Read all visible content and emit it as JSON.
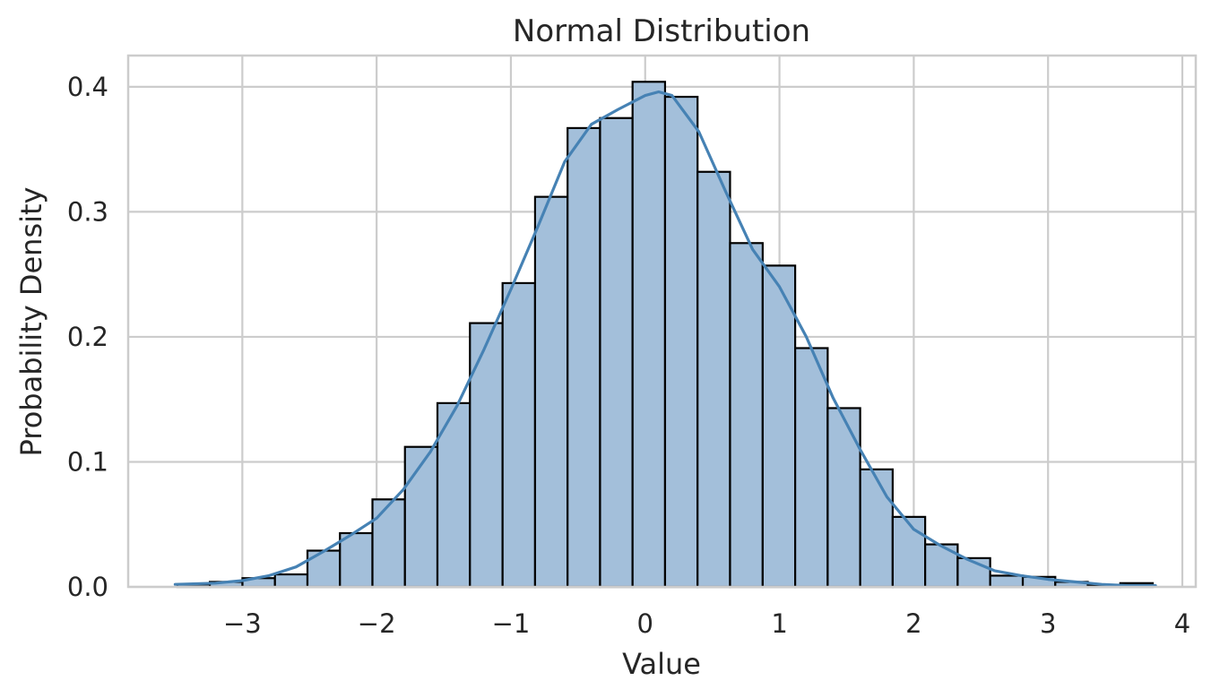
{
  "chart_data": {
    "type": "bar",
    "subtype": "histogram with kde line",
    "title": "Normal Distribution",
    "xlabel": "Value",
    "ylabel": "Probability Density",
    "xlim": [
      -3.85,
      4.1
    ],
    "ylim": [
      0,
      0.425
    ],
    "grid": true,
    "x_ticks": [
      -3,
      -2,
      -1,
      0,
      1,
      2,
      3,
      4
    ],
    "x_tick_labels": [
      "−3",
      "−2",
      "−1",
      "0",
      "1",
      "2",
      "3",
      "4"
    ],
    "y_ticks": [
      0.0,
      0.1,
      0.2,
      0.3,
      0.4
    ],
    "y_tick_labels": [
      "0.0",
      "0.1",
      "0.2",
      "0.3",
      "0.4"
    ],
    "bin_edges": [
      -3.484,
      -3.242,
      -2.999,
      -2.757,
      -2.515,
      -2.273,
      -2.031,
      -1.789,
      -1.547,
      -1.305,
      -1.062,
      -0.82,
      -0.578,
      -0.336,
      -0.094,
      0.148,
      0.39,
      0.632,
      0.875,
      1.117,
      1.359,
      1.601,
      1.843,
      2.085,
      2.327,
      2.569,
      2.812,
      3.054,
      3.296,
      3.538,
      3.78
    ],
    "values": [
      0.002,
      0.004,
      0.007,
      0.01,
      0.029,
      0.043,
      0.07,
      0.112,
      0.147,
      0.211,
      0.243,
      0.312,
      0.367,
      0.375,
      0.404,
      0.392,
      0.332,
      0.275,
      0.257,
      0.191,
      0.143,
      0.094,
      0.056,
      0.034,
      0.023,
      0.009,
      0.008,
      0.004,
      0.001,
      0.003
    ],
    "kde": {
      "x": [
        -3.5,
        -3.2,
        -3.0,
        -2.8,
        -2.6,
        -2.4,
        -2.2,
        -2.0,
        -1.8,
        -1.6,
        -1.4,
        -1.2,
        -1.0,
        -0.8,
        -0.6,
        -0.4,
        -0.2,
        0.0,
        0.1,
        0.2,
        0.4,
        0.6,
        0.8,
        1.0,
        1.2,
        1.4,
        1.6,
        1.8,
        2.0,
        2.2,
        2.4,
        2.6,
        2.8,
        3.0,
        3.2,
        3.4,
        3.6,
        3.8
      ],
      "y": [
        0.002,
        0.003,
        0.005,
        0.009,
        0.016,
        0.028,
        0.041,
        0.055,
        0.078,
        0.108,
        0.145,
        0.19,
        0.238,
        0.288,
        0.34,
        0.37,
        0.382,
        0.393,
        0.396,
        0.393,
        0.364,
        0.316,
        0.27,
        0.24,
        0.2,
        0.151,
        0.11,
        0.072,
        0.046,
        0.033,
        0.022,
        0.013,
        0.009,
        0.006,
        0.004,
        0.002,
        0.001,
        0.001
      ]
    },
    "bar_color": "#a3bfda",
    "bar_edge_color": "#000000",
    "kde_color": "#4682b4"
  }
}
